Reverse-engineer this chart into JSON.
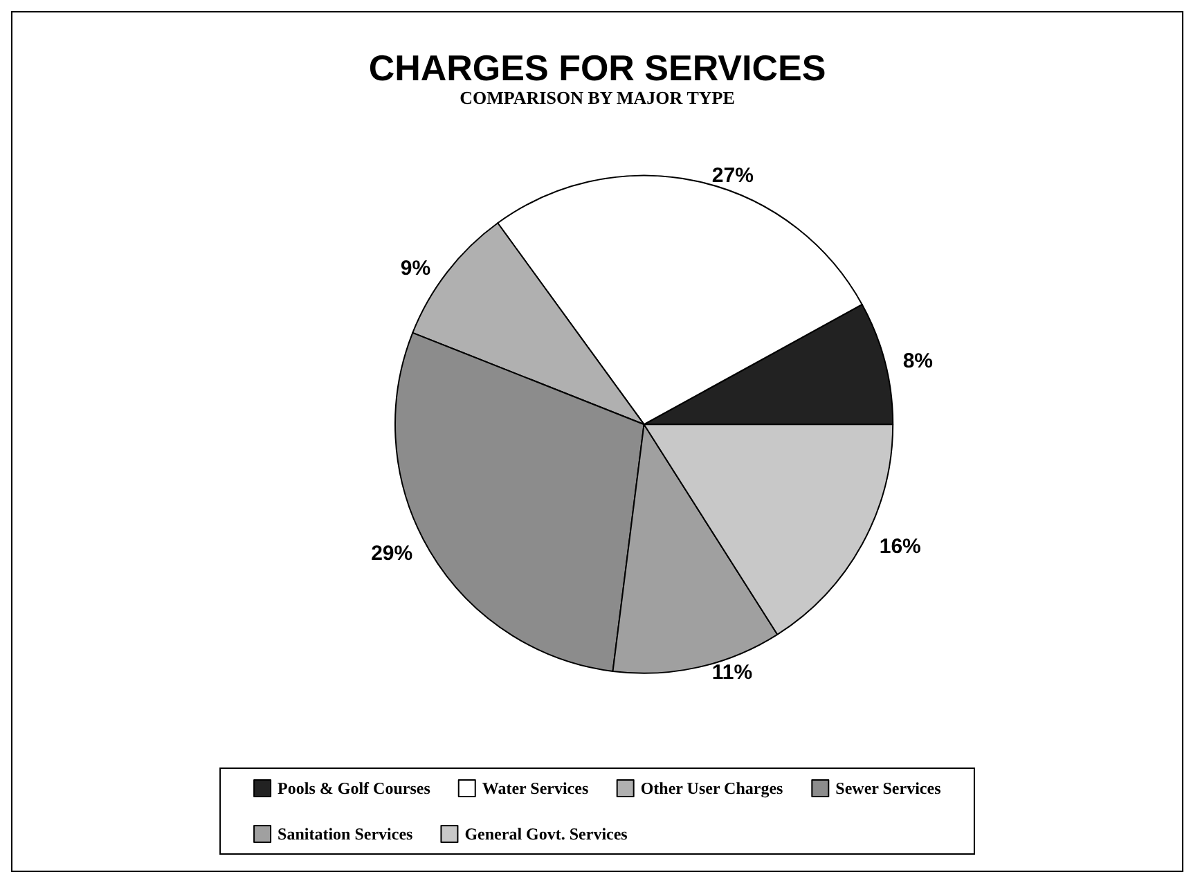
{
  "chart_data": {
    "type": "pie",
    "title": "CHARGES FOR SERVICES",
    "subtitle": "COMPARISON BY MAJOR TYPE",
    "categories": [
      "Pools & Golf Courses",
      "Water Services",
      "Other User Charges",
      "Sewer Services",
      "Sanitation Services",
      "General Govt. Services"
    ],
    "values": [
      8,
      27,
      9,
      29,
      11,
      16
    ],
    "colors": [
      "#222222",
      "#ffffff",
      "#b0b0b0",
      "#8c8c8c",
      "#a0a0a0",
      "#c8c8c8"
    ],
    "value_labels": [
      "8%",
      "27%",
      "9%",
      "29%",
      "11%",
      "16%"
    ],
    "legend": "bottom"
  }
}
